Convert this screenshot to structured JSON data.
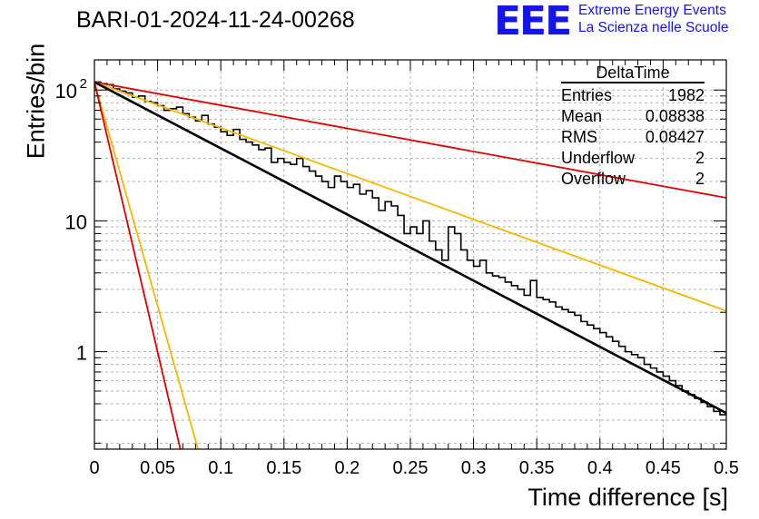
{
  "header": {
    "title": "BARI-01-2024-11-24-00268",
    "logo_text": "EEE",
    "org_line1": "Extreme Energy Events",
    "org_line2": "La Scienza nelle Scuole",
    "logo_color": "#1515e8"
  },
  "stats": {
    "name": "DeltaTime",
    "rows": [
      {
        "label": "Entries",
        "value": "1982"
      },
      {
        "label": "Mean",
        "value": "0.08838"
      },
      {
        "label": "RMS",
        "value": "0.08427"
      },
      {
        "label": "Underflow",
        "value": "2"
      },
      {
        "label": "Overflow",
        "value": "2"
      }
    ]
  },
  "chart_data": {
    "type": "line",
    "xlabel": "Time difference [s]",
    "ylabel": "Entries/bin",
    "xlim": [
      0,
      0.5
    ],
    "ylim": [
      0.18,
      170
    ],
    "yscale": "log",
    "grid": true,
    "x_ticks": [
      "0",
      "0.05",
      "0.1",
      "0.15",
      "0.2",
      "0.25",
      "0.3",
      "0.35",
      "0.4",
      "0.45",
      "0.5"
    ],
    "y_ticks": [
      {
        "value": 1,
        "label": "1"
      },
      {
        "value": 10,
        "label": "10"
      },
      {
        "value": 100,
        "label": "10",
        "sup": "2"
      }
    ],
    "histogram": {
      "bin_width": 0.005,
      "color": "#000000",
      "counts": [
        115,
        112,
        110,
        102,
        98,
        95,
        88,
        90,
        82,
        80,
        76,
        70,
        72,
        74,
        66,
        62,
        58,
        64,
        55,
        52,
        48,
        45,
        50,
        42,
        40,
        38,
        35,
        36,
        28,
        30,
        28,
        27,
        30,
        26,
        24,
        22,
        20,
        18,
        22,
        20,
        18,
        19,
        16,
        17,
        15,
        12,
        14,
        13,
        11,
        8,
        9,
        8,
        10,
        7,
        6,
        5,
        9,
        8,
        6,
        5,
        4.5,
        5,
        4,
        3.8,
        3.7,
        3.4,
        3.2,
        3.0,
        2.7,
        3.5,
        2.6,
        2.5,
        2.4,
        2.2,
        2.1,
        2.0,
        1.9,
        1.7,
        1.6,
        1.5,
        1.4,
        1.3,
        1.2,
        1.1,
        1.0,
        0.95,
        0.9,
        0.8,
        0.75,
        0.7,
        0.65,
        0.6,
        0.55,
        0.5,
        0.47,
        0.44,
        0.41,
        0.38,
        0.35,
        0.33
      ]
    },
    "series": [
      {
        "color": "#e00000",
        "x": [
          0,
          0.5
        ],
        "y": [
          115,
          15
        ]
      },
      {
        "color": "#f5b800",
        "x": [
          0,
          0.5
        ],
        "y": [
          115,
          2.05
        ]
      },
      {
        "color": "#000000",
        "x": [
          0,
          0.5
        ],
        "y": [
          115,
          0.34
        ]
      },
      {
        "color": "#f5b800",
        "x": [
          0,
          0.082
        ],
        "y": [
          115,
          0.18
        ]
      },
      {
        "color": "#e00000",
        "x": [
          0,
          0.068
        ],
        "y": [
          115,
          0.18
        ]
      }
    ]
  }
}
